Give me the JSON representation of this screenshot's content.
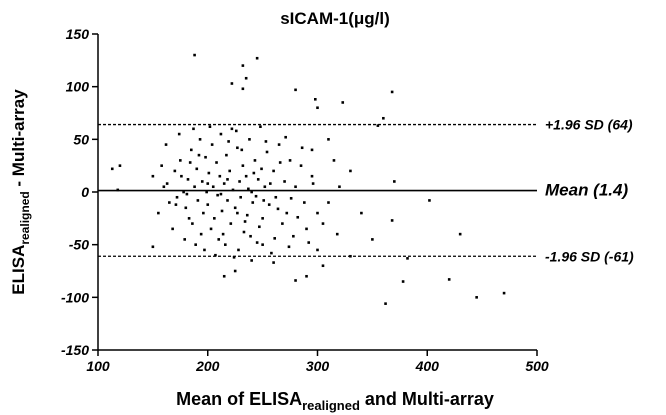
{
  "chart_data": {
    "type": "scatter",
    "title": "sICAM-1(μg/l)",
    "x_label": [
      "Mean of ELISA",
      "realigned",
      " and Multi-array"
    ],
    "y_label": [
      "ELISA",
      "realigned",
      " - Multi-array"
    ],
    "xlim": [
      100,
      500
    ],
    "xticks": [
      100,
      200,
      300,
      400,
      500
    ],
    "ylim": [
      -150,
      150
    ],
    "yticks": [
      -150,
      -100,
      -50,
      0,
      50,
      100,
      150
    ],
    "color": "#000000",
    "reference_lines": [
      {
        "label": "+1.96 SD (64)",
        "value": 64,
        "style": "dashed"
      },
      {
        "label": "Mean (1.4)",
        "value": 1.4,
        "style": "solid"
      },
      {
        "label": "-1.96 SD (-61)",
        "value": -61,
        "style": "dashed"
      }
    ],
    "x": [
      160,
      165,
      170,
      172,
      175,
      178,
      180,
      182,
      185,
      186,
      188,
      190,
      191,
      193,
      194,
      195,
      196,
      198,
      199,
      200,
      201,
      203,
      204,
      205,
      206,
      208,
      209,
      210,
      211,
      212,
      213,
      215,
      216,
      217,
      218,
      220,
      221,
      222,
      223,
      225,
      227,
      228,
      229,
      230,
      232,
      233,
      235,
      236,
      238,
      240,
      241,
      243,
      245,
      246,
      248,
      250,
      252,
      254,
      256,
      258,
      260,
      262,
      265,
      268,
      270,
      272,
      275,
      278,
      280,
      285,
      288,
      290,
      295,
      300,
      155,
      158,
      162,
      168,
      174,
      179,
      183,
      187,
      189,
      192,
      197,
      202,
      207,
      214,
      219,
      224,
      226,
      231,
      234,
      237,
      239,
      242,
      244,
      247,
      249,
      251,
      253,
      257,
      261,
      264,
      266,
      271,
      274,
      276,
      282,
      286,
      292,
      296,
      305,
      310,
      315,
      320,
      163,
      171,
      176,
      181,
      184,
      200,
      212,
      218,
      227,
      188,
      232,
      245,
      235,
      222,
      232,
      280,
      298,
      300,
      323,
      368,
      360,
      355,
      370,
      368,
      402,
      430,
      420,
      445,
      470,
      362,
      378,
      382,
      330,
      318,
      305,
      290,
      280,
      300,
      340,
      350,
      330,
      310,
      295,
      120,
      118,
      113,
      150,
      150,
      215,
      225,
      260,
      250,
      240
    ],
    "y": [
      5,
      -10,
      20,
      -5,
      30,
      0,
      -15,
      12,
      40,
      -30,
      5,
      22,
      -8,
      50,
      -40,
      10,
      -20,
      33,
      0,
      -12,
      18,
      -35,
      45,
      5,
      -25,
      28,
      -3,
      -45,
      15,
      55,
      -18,
      8,
      -50,
      35,
      -8,
      20,
      -30,
      60,
      2,
      -15,
      42,
      -55,
      10,
      -5,
      25,
      -38,
      15,
      -22,
      50,
      0,
      -10,
      30,
      -48,
      12,
      62,
      -25,
      5,
      38,
      -12,
      -58,
      20,
      -5,
      45,
      -30,
      10,
      -20,
      30,
      -42,
      5,
      25,
      -10,
      -35,
      15,
      -20,
      -20,
      25,
      45,
      -35,
      55,
      -45,
      -25,
      60,
      -50,
      35,
      -55,
      62,
      -60,
      -40,
      48,
      -62,
      58,
      40,
      -28,
      3,
      -42,
      18,
      -4,
      -33,
      22,
      -8,
      48,
      8,
      -44,
      -16,
      28,
      52,
      -52,
      -6,
      -24,
      42,
      -48,
      8,
      -30,
      -10,
      30,
      5,
      8,
      -12,
      15,
      -2,
      28,
      8,
      -2,
      12,
      -20,
      130,
      120,
      127,
      108,
      103,
      98,
      97,
      88,
      80,
      85,
      95,
      70,
      63,
      10,
      -27,
      -8,
      -40,
      -83,
      -100,
      -96,
      -106,
      -85,
      -63,
      -61,
      -40,
      -70,
      -80,
      -84,
      -55,
      -20,
      -45,
      20,
      50,
      40,
      25,
      2,
      22,
      -52,
      15,
      -80,
      -75,
      -67,
      -50,
      -65
    ]
  }
}
